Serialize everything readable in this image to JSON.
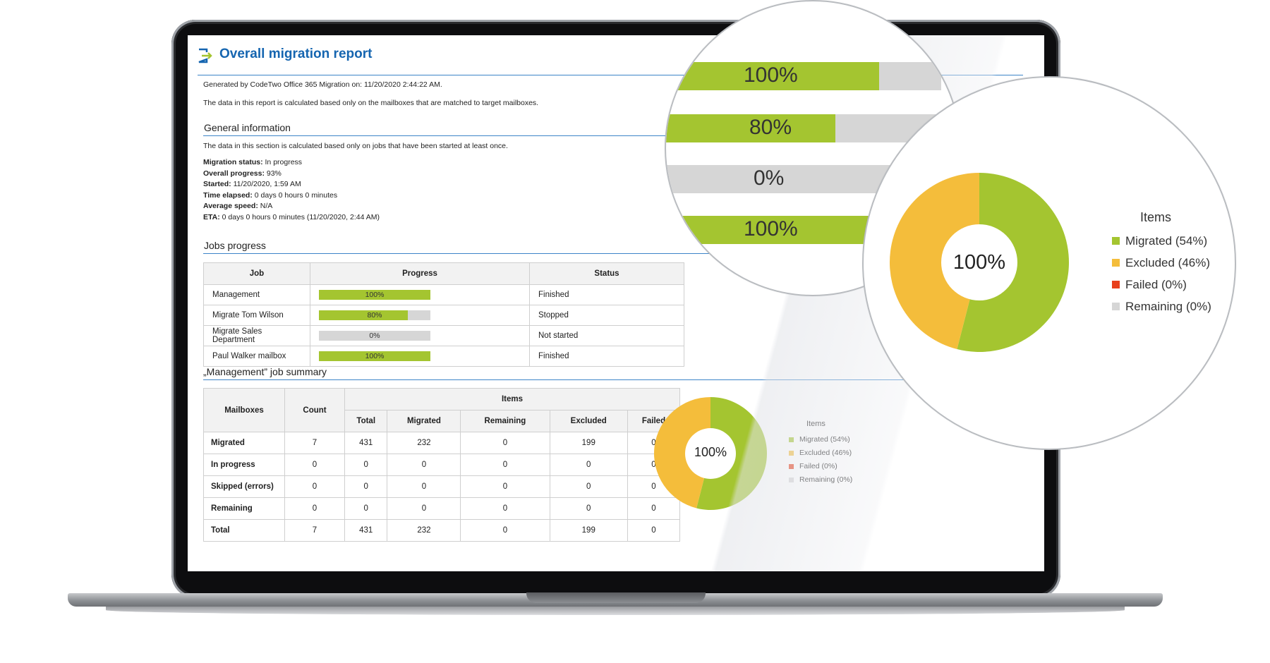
{
  "report": {
    "title": "Overall migration report",
    "generated": "Generated by CodeTwo Office 365 Migration on: 11/20/2020 2:44:22 AM.",
    "note": "The data in this report is calculated based only on the mailboxes that are matched to target mailboxes."
  },
  "general": {
    "heading": "General information",
    "note": "The data in this section is calculated based only on jobs that have been started at least once.",
    "rows": [
      {
        "label": "Migration status:",
        "value": "In progress"
      },
      {
        "label": "Overall progress:",
        "value": "93%"
      },
      {
        "label": "Started:",
        "value": "11/20/2020, 1:59 AM"
      },
      {
        "label": "Time elapsed:",
        "value": "0 days 0 hours 0 minutes"
      },
      {
        "label": "Average speed:",
        "value": "N/A"
      },
      {
        "label": "ETA:",
        "value": "0 days 0 hours 0 minutes (11/20/2020, 2:44 AM)"
      }
    ]
  },
  "jobs": {
    "heading": "Jobs progress",
    "columns": [
      "Job",
      "Progress",
      "Status"
    ],
    "rows": [
      {
        "job": "Management",
        "progress": 100,
        "progress_label": "100%",
        "status": "Finished"
      },
      {
        "job": "Migrate Tom Wilson",
        "progress": 80,
        "progress_label": "80%",
        "status": "Stopped"
      },
      {
        "job": "Migrate Sales Department",
        "progress": 0,
        "progress_label": "0%",
        "status": "Not started"
      },
      {
        "job": "Paul Walker mailbox",
        "progress": 100,
        "progress_label": "100%",
        "status": "Finished"
      }
    ]
  },
  "summary": {
    "heading": "„Management” job summary",
    "col_mailboxes": "Mailboxes",
    "col_count": "Count",
    "col_items": "Items",
    "item_columns": [
      "Total",
      "Migrated",
      "Remaining",
      "Excluded",
      "Failed"
    ],
    "rows": [
      {
        "label": "Migrated",
        "values": [
          "7",
          "431",
          "232",
          "0",
          "199",
          "0"
        ]
      },
      {
        "label": "In progress",
        "values": [
          "0",
          "0",
          "0",
          "0",
          "0",
          "0"
        ]
      },
      {
        "label": "Skipped (errors)",
        "values": [
          "0",
          "0",
          "0",
          "0",
          "0",
          "0"
        ]
      },
      {
        "label": "Remaining",
        "values": [
          "0",
          "0",
          "0",
          "0",
          "0",
          "0"
        ]
      },
      {
        "label": "Total",
        "values": [
          "7",
          "431",
          "232",
          "0",
          "199",
          "0"
        ]
      }
    ]
  },
  "chart_data": {
    "type": "pie",
    "center_label": "100%",
    "legend_title": "Items",
    "slices": [
      {
        "label": "Migrated (54%)",
        "value": 54,
        "color": "#a4c530"
      },
      {
        "label": "Excluded (46%)",
        "value": 46,
        "color": "#f4bd3b"
      },
      {
        "label": "Failed (0%)",
        "value": 0,
        "color": "#e8401c"
      },
      {
        "label": "Remaining (0%)",
        "value": 0,
        "color": "#d6d6d6"
      }
    ]
  },
  "zoom_bars": [
    {
      "label": "100%",
      "progress": 100
    },
    {
      "label": "80%",
      "progress": 80
    },
    {
      "label": "0%",
      "progress": 0
    },
    {
      "label": "100%",
      "progress": 100
    }
  ],
  "colors": {
    "accent": "#1565b0",
    "green": "#a4c530",
    "amber": "#f4bd3b",
    "red": "#e8401c",
    "grey": "#d6d6d6"
  },
  "icons": {
    "logo": "migration-arrow-icon"
  }
}
